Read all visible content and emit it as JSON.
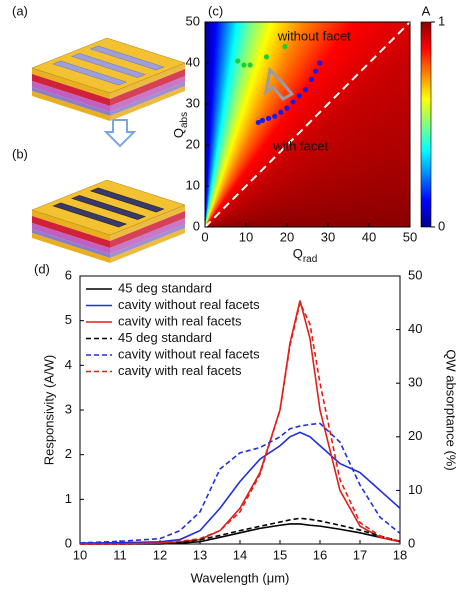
{
  "sketches": [
    {
      "label": "(a)"
    },
    {
      "label": "(b)"
    }
  ],
  "chart_data": [
    {
      "type": "heatmap-scatter",
      "label": "(c)",
      "xlabel": "Q",
      "xlabel_sub": "rad",
      "ylabel": "Q",
      "ylabel_sub": "abs",
      "xlim": [
        0,
        50
      ],
      "ylim": [
        0,
        50
      ],
      "xticks": [
        0,
        10,
        20,
        30,
        40,
        50
      ],
      "yticks": [
        0,
        10,
        20,
        30,
        40,
        50
      ],
      "colormap": "jet",
      "colorbar": {
        "label": "A",
        "lim": [
          0,
          1
        ],
        "ticks": [
          0,
          1
        ]
      },
      "series": [
        {
          "name": "without facet",
          "color": "#22cc33",
          "x": [
            8,
            9.5,
            11,
            15,
            19.5
          ],
          "values": [
            40.5,
            39.5,
            39.5,
            41.5,
            44
          ]
        },
        {
          "name": "with facet",
          "color": "#1a1aee",
          "x": [
            13,
            14,
            15.5,
            17,
            18.5,
            20,
            21.5,
            23,
            24.5,
            26,
            27,
            28
          ],
          "values": [
            25.5,
            26,
            26.5,
            27,
            28,
            29,
            30.5,
            32,
            33.5,
            36,
            38,
            40
          ]
        }
      ]
    },
    {
      "type": "line",
      "label": "(d)",
      "xlabel": "Wavelength (μm)",
      "ylabel": "Responsivity (A/W)",
      "y2label": "QW absorptance (%)",
      "x": [
        10,
        11,
        12,
        12.5,
        13,
        13.5,
        14,
        14.5,
        15,
        15.25,
        15.5,
        15.75,
        16,
        16.5,
        17,
        17.5,
        18
      ],
      "xlim": [
        10,
        18
      ],
      "ylim": [
        0,
        6
      ],
      "y2lim": [
        0,
        50
      ],
      "xticks": [
        10,
        11,
        12,
        13,
        14,
        15,
        16,
        17,
        18
      ],
      "yticks": [
        0,
        1,
        2,
        3,
        4,
        5,
        6
      ],
      "y2ticks": [
        0,
        10,
        20,
        30,
        40,
        50
      ],
      "legend": "upper left",
      "series": [
        {
          "name": "45 deg standard",
          "color": "#000000",
          "style": "solid",
          "values": [
            0,
            0,
            0,
            0.02,
            0.05,
            0.15,
            0.25,
            0.35,
            0.42,
            0.45,
            0.45,
            0.42,
            0.4,
            0.33,
            0.25,
            0.15,
            0.05
          ]
        },
        {
          "name": "cavity without real facets",
          "color": "#1f2fdc",
          "style": "solid",
          "values": [
            0.02,
            0.03,
            0.05,
            0.1,
            0.3,
            0.8,
            1.4,
            1.9,
            2.2,
            2.4,
            2.5,
            2.4,
            2.2,
            1.8,
            1.6,
            1.2,
            0.8
          ]
        },
        {
          "name": "cavity with real facets",
          "color": "#e0201a",
          "style": "solid",
          "values": [
            0,
            0,
            0.02,
            0.05,
            0.1,
            0.3,
            0.8,
            1.6,
            3.0,
            4.5,
            5.45,
            4.6,
            3.0,
            1.2,
            0.4,
            0.15,
            0.05
          ]
        },
        {
          "name": "45 deg standard",
          "color": "#000000",
          "style": "dashed",
          "axis": "y2",
          "values": [
            0,
            0,
            0.1,
            0.3,
            0.8,
            1.6,
            2.5,
            3.3,
            4.1,
            4.5,
            4.8,
            4.6,
            4.3,
            3.5,
            2.6,
            1.5,
            0.5
          ]
        },
        {
          "name": "cavity without real facets",
          "color": "#1f2fdc",
          "style": "dashed",
          "axis": "y2",
          "values": [
            0.2,
            0.5,
            1,
            2.5,
            6,
            14,
            17,
            18,
            20,
            21.5,
            22,
            22.3,
            22.5,
            19,
            11,
            5,
            2
          ]
        },
        {
          "name": "cavity with real facets",
          "color": "#e0201a",
          "style": "dashed",
          "axis": "y2",
          "values": [
            0,
            0,
            0.2,
            0.5,
            1,
            2.5,
            6,
            13,
            25,
            37,
            45,
            41,
            30,
            12,
            4,
            1.5,
            0.5
          ]
        }
      ]
    }
  ]
}
